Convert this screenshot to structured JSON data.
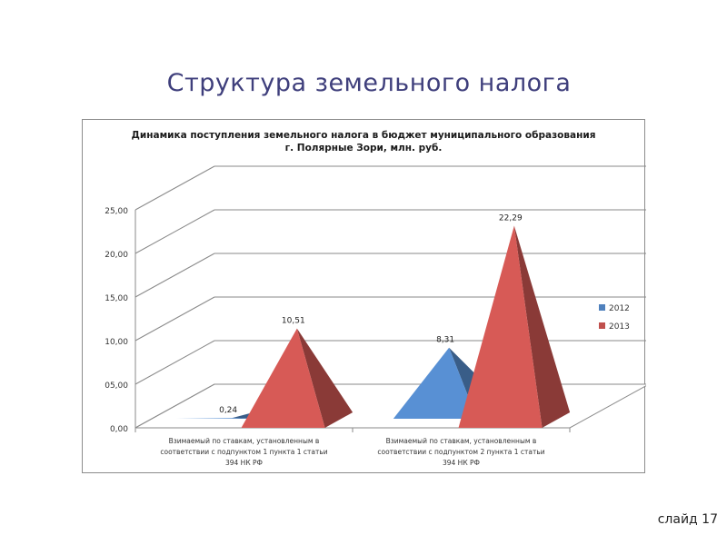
{
  "slide": {
    "title": "Структура земельного налога",
    "number_label": "слайд 17"
  },
  "chart_data": {
    "type": "bar",
    "title": "Динамика поступления земельного налога в бюджет муниципального образования",
    "subtitle": "г. Полярные Зори, млн. руб.",
    "categories": [
      [
        "Взимаемый по ставкам, установленным в",
        "соответствии с подпунктом 1 пункта 1 статьи",
        "394 НК РФ"
      ],
      [
        "Взимаемый по ставкам, установленным в",
        "соответствии с подпунктом 2 пункта 1 статьи",
        "394 НК РФ"
      ]
    ],
    "series": [
      {
        "name": "2012",
        "values": [
          0.24,
          8.31
        ],
        "labels": [
          "0,24",
          "8,31"
        ],
        "color": "#4f81bd"
      },
      {
        "name": "2013",
        "values": [
          10.51,
          22.29
        ],
        "labels": [
          "10,51",
          "22,29"
        ],
        "color": "#c0504d"
      }
    ],
    "yticks": [
      "0,00",
      "05,00",
      "10,00",
      "15,00",
      "20,00",
      "25,00"
    ],
    "ylim": [
      0,
      25
    ],
    "grid": true,
    "legend_position": "right",
    "style": "3d-pyramid"
  }
}
